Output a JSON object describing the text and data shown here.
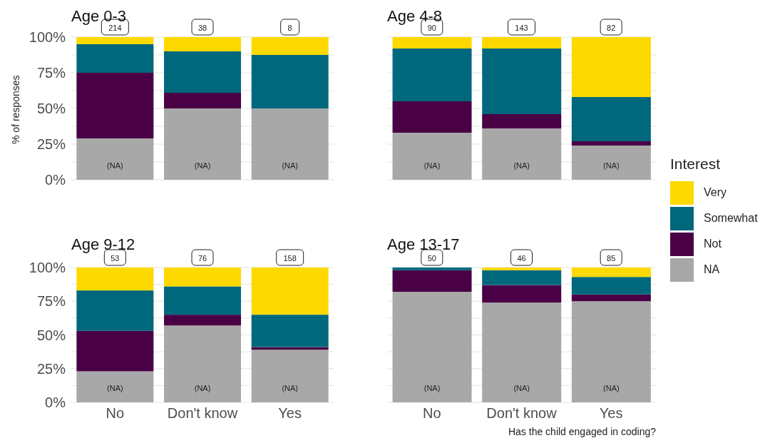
{
  "chart_data": [
    {
      "type": "bar",
      "title": "Age 0-3",
      "ylabel": "% of responses",
      "categories": [
        "No",
        "Don't know",
        "Yes"
      ],
      "stacked": true,
      "tick_labels": "y",
      "grid": "y",
      "ylim": [
        0,
        100
      ],
      "yticks": [
        {
          "value": 0,
          "label": "0%"
        },
        {
          "value": 12.5,
          "label": null
        },
        {
          "value": 25,
          "label": "25%"
        },
        {
          "value": 37.5,
          "label": null
        },
        {
          "value": 50,
          "label": "50%"
        },
        {
          "value": 62.5,
          "label": null
        },
        {
          "value": 75,
          "label": "75%"
        },
        {
          "value": 87.5,
          "label": null
        },
        {
          "value": 100,
          "label": "100%"
        }
      ],
      "series": [
        {
          "color": "#a8a8a8",
          "values": [
            29,
            50,
            50
          ],
          "value_labels": [
            "(NA)",
            "(NA)",
            "(NA)"
          ]
        },
        {
          "color": "#4a0045",
          "values": [
            46,
            11,
            0
          ]
        },
        {
          "color": "#00687c",
          "values": [
            20,
            29,
            37.5
          ]
        },
        {
          "color": "#fdd900",
          "values": [
            5,
            10,
            12.5
          ]
        }
      ],
      "annotations": [
        {
          "text": "214",
          "x": "No",
          "y": 100
        },
        {
          "text": "38",
          "x": "Don't know",
          "y": 100
        },
        {
          "text": "8",
          "x": "Yes",
          "y": 100
        }
      ]
    },
    {
      "type": "bar",
      "title": "Age 4-8",
      "categories": [
        "No",
        "Don't know",
        "Yes"
      ],
      "stacked": true,
      "tick_labels": false,
      "grid": "y",
      "ylim": [
        0,
        100
      ],
      "yticks": [
        {
          "value": 0,
          "label": "0%"
        },
        {
          "value": 12.5,
          "label": null
        },
        {
          "value": 25,
          "label": "25%"
        },
        {
          "value": 37.5,
          "label": null
        },
        {
          "value": 50,
          "label": "50%"
        },
        {
          "value": 62.5,
          "label": null
        },
        {
          "value": 75,
          "label": "75%"
        },
        {
          "value": 87.5,
          "label": null
        },
        {
          "value": 100,
          "label": "100%"
        }
      ],
      "series": [
        {
          "color": "#a8a8a8",
          "values": [
            33,
            36,
            24
          ],
          "value_labels": [
            "(NA)",
            "(NA)",
            "(NA)"
          ]
        },
        {
          "color": "#4a0045",
          "values": [
            22,
            10,
            3
          ]
        },
        {
          "color": "#00687c",
          "values": [
            37,
            46,
            31
          ]
        },
        {
          "color": "#fdd900",
          "values": [
            8,
            8,
            42
          ]
        }
      ],
      "annotations": [
        {
          "text": "90",
          "x": "No",
          "y": 100
        },
        {
          "text": "143",
          "x": "Don't know",
          "y": 100
        },
        {
          "text": "82",
          "x": "Yes",
          "y": 100
        }
      ]
    },
    {
      "type": "bar",
      "title": "Age 9-12",
      "categories": [
        "No",
        "Don't know",
        "Yes"
      ],
      "stacked": true,
      "grid": "y",
      "ylim": [
        0,
        100
      ],
      "yticks": [
        {
          "value": 0,
          "label": "0%"
        },
        {
          "value": 12.5,
          "label": null
        },
        {
          "value": 25,
          "label": "25%"
        },
        {
          "value": 37.5,
          "label": null
        },
        {
          "value": 50,
          "label": "50%"
        },
        {
          "value": 62.5,
          "label": null
        },
        {
          "value": 75,
          "label": "75%"
        },
        {
          "value": 87.5,
          "label": null
        },
        {
          "value": 100,
          "label": "100%"
        }
      ],
      "series": [
        {
          "color": "#a8a8a8",
          "values": [
            23,
            57,
            39
          ],
          "value_labels": [
            "(NA)",
            "(NA)",
            "(NA)"
          ]
        },
        {
          "color": "#4a0045",
          "values": [
            30,
            8,
            2
          ]
        },
        {
          "color": "#00687c",
          "values": [
            30,
            21,
            24
          ]
        },
        {
          "color": "#fdd900",
          "values": [
            17,
            14,
            35
          ]
        }
      ],
      "annotations": [
        {
          "text": "53",
          "x": "No",
          "y": 100
        },
        {
          "text": "76",
          "x": "Don't know",
          "y": 100
        },
        {
          "text": "158",
          "x": "Yes",
          "y": 100
        }
      ]
    },
    {
      "type": "bar",
      "title": "Age 13-17",
      "xlabel": "Has the child engaged in coding?",
      "legend_title": "Interest",
      "legend": "right",
      "categories": [
        "No",
        "Don't know",
        "Yes"
      ],
      "stacked": true,
      "tick_labels": "x",
      "grid": "y",
      "ylim": [
        0,
        100
      ],
      "yticks": [
        {
          "value": 0,
          "label": "0%"
        },
        {
          "value": 12.5,
          "label": null
        },
        {
          "value": 25,
          "label": "25%"
        },
        {
          "value": 37.5,
          "label": null
        },
        {
          "value": 50,
          "label": "50%"
        },
        {
          "value": 62.5,
          "label": null
        },
        {
          "value": 75,
          "label": "75%"
        },
        {
          "value": 87.5,
          "label": null
        },
        {
          "value": 100,
          "label": "100%"
        }
      ],
      "series": [
        {
          "name": "NA",
          "color": "#a8a8a8",
          "values": [
            82,
            74,
            75
          ],
          "value_labels": [
            "(NA)",
            "(NA)",
            "(NA)"
          ]
        },
        {
          "name": "Not",
          "color": "#4a0045",
          "values": [
            16,
            13,
            5
          ]
        },
        {
          "name": "Somewhat",
          "color": "#00687c",
          "values": [
            2,
            11,
            13
          ]
        },
        {
          "name": "Very",
          "color": "#fdd900",
          "values": [
            0,
            2,
            7
          ]
        }
      ],
      "annotations": [
        {
          "text": "50",
          "x": "No",
          "y": 100
        },
        {
          "text": "46",
          "x": "Don't know",
          "y": 100
        },
        {
          "text": "85",
          "x": "Yes",
          "y": 100
        }
      ]
    }
  ]
}
